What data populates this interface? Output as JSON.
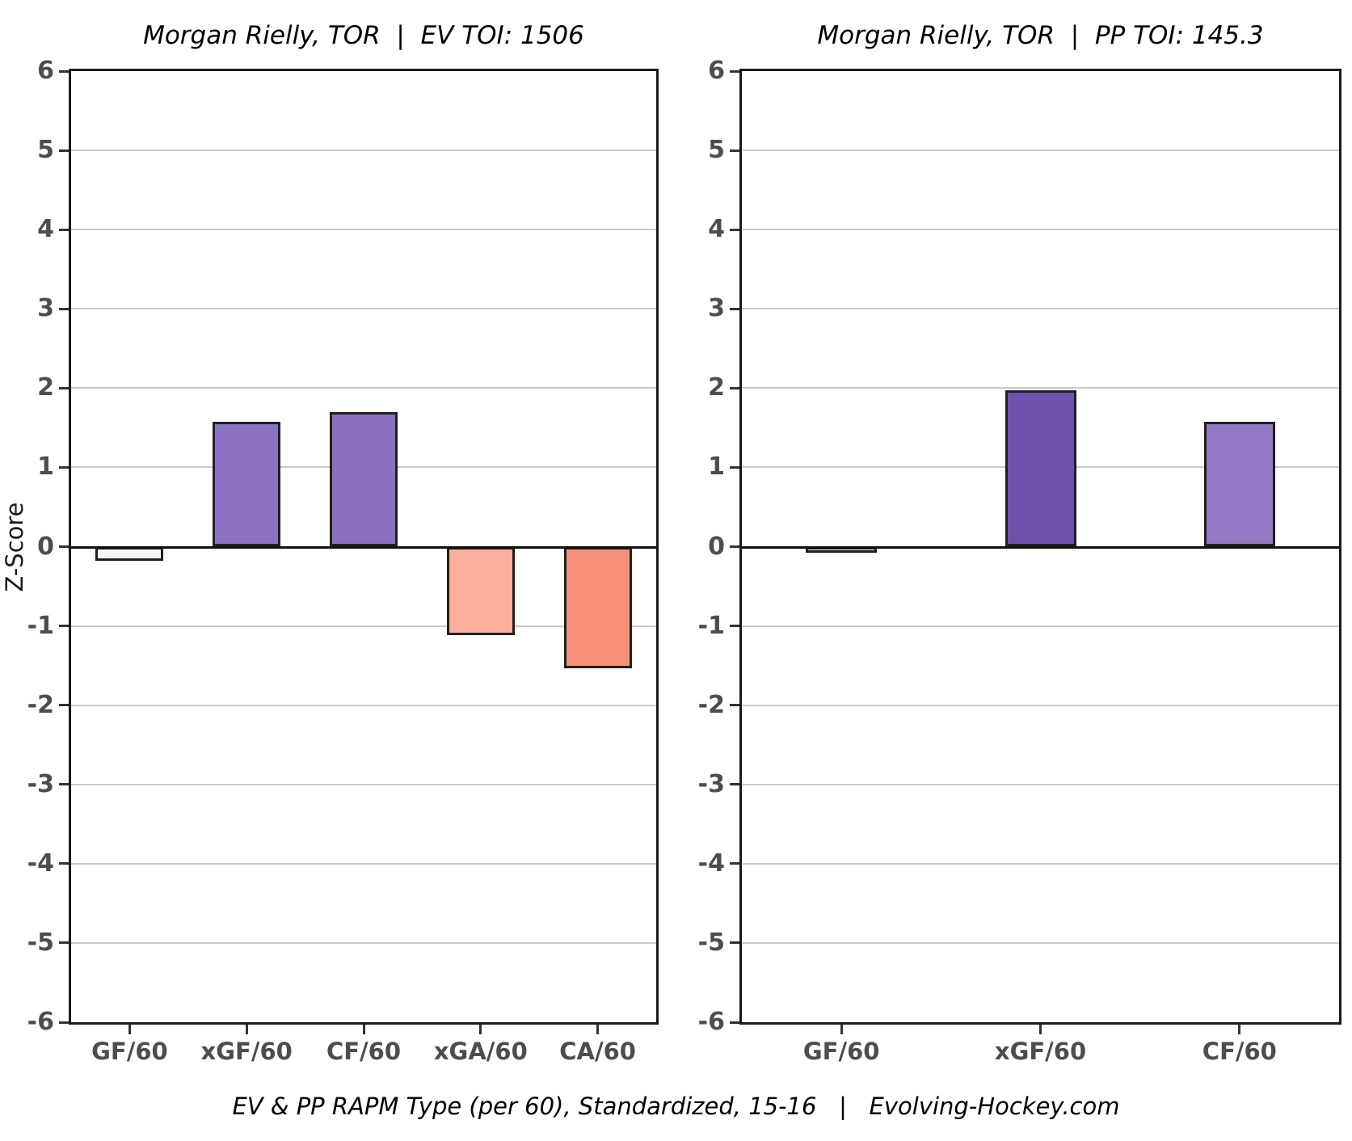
{
  "caption": "EV & PP RAPM Type (per 60), Standardized, 15-16   |   Evolving-Hockey.com",
  "y_axis_title": "Z-Score",
  "chart_data": [
    {
      "type": "bar",
      "title": "Morgan Rielly, TOR  |  EV TOI: 1506",
      "player": "Morgan Rielly",
      "team": "TOR",
      "strength": "EV",
      "toi": 1506,
      "categories": [
        "GF/60",
        "xGF/60",
        "CF/60",
        "xGA/60",
        "CA/60"
      ],
      "values": [
        -0.18,
        1.58,
        1.7,
        -1.12,
        -1.53
      ],
      "bar_colors": [
        "#f7f4f1",
        "#8c72c2",
        "#8a70c1",
        "#fcae9b",
        "#f69078"
      ],
      "bar_patterns": [
        "dots",
        "none",
        "none",
        "none",
        "none"
      ],
      "ylabel": "Z-Score",
      "xlabel": "",
      "ylim": [
        -6,
        6
      ],
      "yticks": [
        6,
        5,
        4,
        3,
        2,
        1,
        0,
        -1,
        -2,
        -3,
        -4,
        -5,
        -6
      ],
      "grid": true,
      "zero_line": true,
      "legend": "none"
    },
    {
      "type": "bar",
      "title": "Morgan Rielly, TOR  |  PP TOI: 145.3",
      "player": "Morgan Rielly",
      "team": "TOR",
      "strength": "PP",
      "toi": 145.3,
      "categories": [
        "GF/60",
        "xGF/60",
        "CF/60"
      ],
      "values": [
        -0.08,
        1.97,
        1.58
      ],
      "bar_colors": [
        "#f7f4f1",
        "#6d53ae",
        "#9278c3"
      ],
      "bar_patterns": [
        "dots",
        "none",
        "none"
      ],
      "ylabel": "",
      "xlabel": "",
      "ylim": [
        -6,
        6
      ],
      "yticks": [
        6,
        5,
        4,
        3,
        2,
        1,
        0,
        -1,
        -2,
        -3,
        -4,
        -5,
        -6
      ],
      "grid": true,
      "zero_line": true,
      "legend": "none"
    }
  ],
  "colors": {
    "background": "#ffffff",
    "gridline": "#c9c9c9",
    "zero_line": "#111111",
    "panel_border": "#1a1a1a",
    "tick_label": "#4d4d4d",
    "positive_strong_purple": "#6d53ae",
    "positive_purple": "#8c72c2",
    "negative_light_salmon": "#fcae9b",
    "negative_salmon": "#f69078",
    "neutral_white": "#f7f4f1"
  }
}
